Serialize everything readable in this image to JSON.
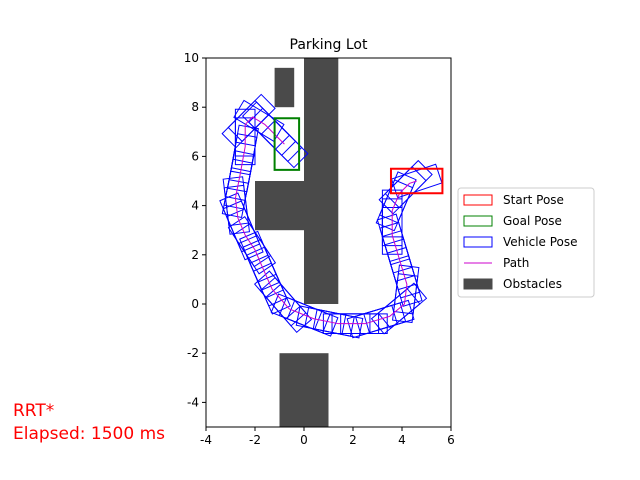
{
  "chart_data": {
    "type": "scatter",
    "title": "Parking Lot",
    "xlabel": "",
    "ylabel": "",
    "xlim": [
      -4,
      6
    ],
    "ylim": [
      -5,
      10
    ],
    "xticks": [
      -4,
      -2,
      0,
      2,
      4,
      6
    ],
    "yticks": [
      -4,
      -2,
      0,
      2,
      4,
      6,
      8,
      10
    ],
    "grid": false,
    "legend_position": "right",
    "legend": [
      {
        "label": "Start Pose",
        "kind": "box",
        "edge": "#ff0000",
        "fill": "none"
      },
      {
        "label": "Goal Pose",
        "kind": "box",
        "edge": "#008000",
        "fill": "none"
      },
      {
        "label": "Vehicle Pose",
        "kind": "box",
        "edge": "#0000ff",
        "fill": "none"
      },
      {
        "label": "Path",
        "kind": "line",
        "edge": "#cc00cc",
        "fill": "none"
      },
      {
        "label": "Obstacles",
        "kind": "box",
        "edge": "#4a4a4a",
        "fill": "#4a4a4a"
      }
    ],
    "obstacles": [
      {
        "x": [
          -1.2,
          -0.4
        ],
        "y": [
          8.0,
          9.6
        ]
      },
      {
        "x": [
          0.0,
          1.4
        ],
        "y": [
          0.0,
          10.0
        ]
      },
      {
        "x": [
          -2.0,
          0.0
        ],
        "y": [
          3.0,
          5.0
        ]
      },
      {
        "x": [
          -1.0,
          1.0
        ],
        "y": [
          -5.0,
          -2.0
        ]
      }
    ],
    "start_pose": {
      "x": 4.6,
      "y": 5.0,
      "heading_deg": 0,
      "length": 2.1,
      "width": 1.0
    },
    "goal_pose": {
      "x": -0.7,
      "y": 6.5,
      "heading_deg": 90,
      "length": 2.1,
      "width": 1.0
    },
    "path": {
      "x": [
        4.6,
        4.3,
        3.9,
        3.6,
        3.6,
        3.9,
        4.2,
        4.1,
        3.5,
        2.5,
        1.4,
        0.4,
        -0.6,
        -1.3,
        -1.7,
        -2.0,
        -2.4,
        -2.7,
        -2.8,
        -2.6,
        -2.4,
        -2.4,
        -2.1,
        -1.6,
        -1.2,
        -0.8
      ],
      "y": [
        5.0,
        4.9,
        4.5,
        3.8,
        2.8,
        1.8,
        0.8,
        0.0,
        -0.5,
        -0.8,
        -0.8,
        -0.6,
        -0.2,
        0.6,
        1.5,
        2.2,
        2.8,
        3.5,
        4.3,
        5.3,
        6.4,
        7.3,
        7.6,
        7.3,
        6.9,
        6.5
      ]
    },
    "vehicle_pose_count": 60,
    "vehicle_pose_length": 1.9,
    "vehicle_pose_width": 0.8
  },
  "annotation": {
    "line1": "RRT*",
    "line2": "Elapsed: 1500 ms",
    "color": "#ff0000"
  }
}
